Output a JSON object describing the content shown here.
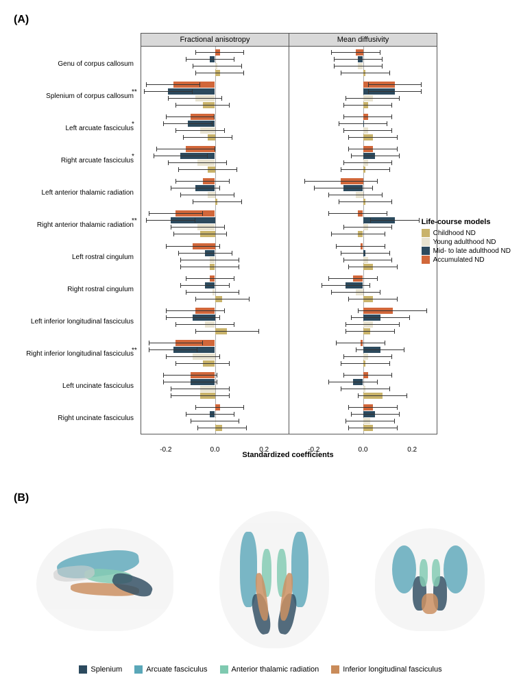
{
  "panelA_label": "(A)",
  "panelB_label": "(B)",
  "facets": [
    "Fractional anisotropy",
    "Mean diffusivity"
  ],
  "x_title": "Standardized coefficients",
  "xlim": [
    -0.3,
    0.3
  ],
  "xticks": [
    -0.2,
    0.0,
    0.2
  ],
  "legendA": {
    "title": "Life-course models",
    "items": [
      {
        "label": "Childhood ND",
        "color": "#c9b36a"
      },
      {
        "label": "Young adulthood ND",
        "color": "#e8e3d0"
      },
      {
        "label": "Mid- to late adulthood ND",
        "color": "#2c4a5e"
      },
      {
        "label": "Accumulated ND",
        "color": "#d1673a"
      }
    ]
  },
  "colors": {
    "childhood": "#c9b36a",
    "young": "#e8e3d0",
    "mid": "#2c4a5e",
    "accum": "#d1673a"
  },
  "regions": [
    {
      "label": "Genu of corpus callosum",
      "sig": "",
      "FA": {
        "childhood": [
          0.02,
          0.1
        ],
        "young": [
          0.01,
          0.1
        ],
        "mid": [
          -0.02,
          0.1
        ],
        "accum": [
          0.02,
          0.1
        ]
      },
      "MD": {
        "childhood": [
          0.01,
          0.1
        ],
        "young": [
          -0.02,
          0.1
        ],
        "mid": [
          -0.02,
          0.1
        ],
        "accum": [
          -0.03,
          0.1
        ]
      }
    },
    {
      "label": "Splenium of corpus callosum",
      "sig": "**",
      "FA": {
        "childhood": [
          -0.05,
          0.11
        ],
        "young": [
          -0.08,
          0.11
        ],
        "mid": [
          -0.19,
          0.1
        ],
        "accum": [
          -0.17,
          0.11
        ]
      },
      "MD": {
        "childhood": [
          0.02,
          0.1
        ],
        "young": [
          0.04,
          0.11
        ],
        "mid": [
          0.13,
          0.11
        ],
        "accum": [
          0.13,
          0.11
        ]
      }
    },
    {
      "label": "Left arcuate fasciculus",
      "sig": "*",
      "FA": {
        "childhood": [
          -0.03,
          0.1
        ],
        "young": [
          -0.06,
          0.1
        ],
        "mid": [
          -0.11,
          0.1
        ],
        "accum": [
          -0.1,
          0.1
        ]
      },
      "MD": {
        "childhood": [
          0.04,
          0.1
        ],
        "young": [
          0.02,
          0.1
        ],
        "mid": [
          0.0,
          0.1
        ],
        "accum": [
          0.02,
          0.1
        ]
      }
    },
    {
      "label": "Right arcuate fasciculus",
      "sig": "*",
      "FA": {
        "childhood": [
          -0.03,
          0.12
        ],
        "young": [
          -0.07,
          0.12
        ],
        "mid": [
          -0.14,
          0.11
        ],
        "accum": [
          -0.12,
          0.12
        ]
      },
      "MD": {
        "childhood": [
          0.01,
          0.1
        ],
        "young": [
          0.02,
          0.1
        ],
        "mid": [
          0.05,
          0.1
        ],
        "accum": [
          0.04,
          0.1
        ]
      }
    },
    {
      "label": "Left anterior thalamic radiation",
      "sig": "",
      "FA": {
        "childhood": [
          0.01,
          0.1
        ],
        "young": [
          -0.03,
          0.11
        ],
        "mid": [
          -0.08,
          0.1
        ],
        "accum": [
          -0.05,
          0.11
        ]
      },
      "MD": {
        "childhood": [
          0.01,
          0.11
        ],
        "young": [
          -0.03,
          0.11
        ],
        "mid": [
          -0.08,
          0.12
        ],
        "accum": [
          -0.09,
          0.15
        ]
      }
    },
    {
      "label": "Right anterior thalamic radiation",
      "sig": "**",
      "FA": {
        "childhood": [
          -0.06,
          0.11
        ],
        "young": [
          -0.07,
          0.11
        ],
        "mid": [
          -0.18,
          0.1
        ],
        "accum": [
          -0.16,
          0.11
        ]
      },
      "MD": {
        "childhood": [
          -0.02,
          0.11
        ],
        "young": [
          0.02,
          0.1
        ],
        "mid": [
          0.13,
          0.1
        ],
        "accum": [
          -0.02,
          0.12
        ]
      }
    },
    {
      "label": "Left rostral cingulum",
      "sig": "",
      "FA": {
        "childhood": [
          -0.02,
          0.12
        ],
        "young": [
          -0.02,
          0.12
        ],
        "mid": [
          -0.04,
          0.11
        ],
        "accum": [
          -0.09,
          0.11
        ]
      },
      "MD": {
        "childhood": [
          0.04,
          0.1
        ],
        "young": [
          0.02,
          0.1
        ],
        "mid": [
          0.01,
          0.1
        ],
        "accum": [
          -0.01,
          0.1
        ]
      }
    },
    {
      "label": "Right rostral cingulum",
      "sig": "",
      "FA": {
        "childhood": [
          0.03,
          0.11
        ],
        "young": [
          -0.01,
          0.11
        ],
        "mid": [
          -0.04,
          0.1
        ],
        "accum": [
          -0.02,
          0.1
        ]
      },
      "MD": {
        "childhood": [
          0.04,
          0.1
        ],
        "young": [
          -0.03,
          0.1
        ],
        "mid": [
          -0.07,
          0.1
        ],
        "accum": [
          -0.04,
          0.1
        ]
      }
    },
    {
      "label": "Left inferior longitudinal fasciculus",
      "sig": "",
      "FA": {
        "childhood": [
          0.05,
          0.13
        ],
        "young": [
          -0.04,
          0.12
        ],
        "mid": [
          -0.09,
          0.11
        ],
        "accum": [
          -0.08,
          0.12
        ]
      },
      "MD": {
        "childhood": [
          0.03,
          0.1
        ],
        "young": [
          0.04,
          0.11
        ],
        "mid": [
          0.07,
          0.12
        ],
        "accum": [
          0.12,
          0.14
        ]
      }
    },
    {
      "label": "Right inferior longitudinal fasciculus",
      "sig": "**",
      "FA": {
        "childhood": [
          -0.05,
          0.11
        ],
        "young": [
          -0.09,
          0.11
        ],
        "mid": [
          -0.17,
          0.1
        ],
        "accum": [
          -0.16,
          0.11
        ]
      },
      "MD": {
        "childhood": [
          0.01,
          0.1
        ],
        "young": [
          0.02,
          0.1
        ],
        "mid": [
          0.07,
          0.1
        ],
        "accum": [
          -0.01,
          0.1
        ]
      }
    },
    {
      "label": "Left uncinate fasciculus",
      "sig": "",
      "FA": {
        "childhood": [
          -0.06,
          0.12
        ],
        "young": [
          -0.06,
          0.12
        ],
        "mid": [
          -0.1,
          0.11
        ],
        "accum": [
          -0.1,
          0.11
        ]
      },
      "MD": {
        "childhood": [
          0.08,
          0.1
        ],
        "young": [
          0.01,
          0.1
        ],
        "mid": [
          -0.04,
          0.1
        ],
        "accum": [
          0.02,
          0.1
        ]
      }
    },
    {
      "label": "Right uncinate fasciculus",
      "sig": "",
      "FA": {
        "childhood": [
          0.03,
          0.1
        ],
        "young": [
          0.0,
          0.1
        ],
        "mid": [
          -0.02,
          0.1
        ],
        "accum": [
          0.02,
          0.1
        ]
      },
      "MD": {
        "childhood": [
          0.04,
          0.1
        ],
        "young": [
          0.03,
          0.1
        ],
        "mid": [
          0.05,
          0.1
        ],
        "accum": [
          0.04,
          0.1
        ]
      }
    }
  ],
  "legendB": [
    {
      "label": "Splenium",
      "color": "#2c4a5e"
    },
    {
      "label": "Arcuate fasciculus",
      "color": "#5aa7b8"
    },
    {
      "label": "Anterior thalamic radiation",
      "color": "#7fc9b0"
    },
    {
      "label": "Inferior longitudinal fasciculus",
      "color": "#c98b5a"
    }
  ]
}
